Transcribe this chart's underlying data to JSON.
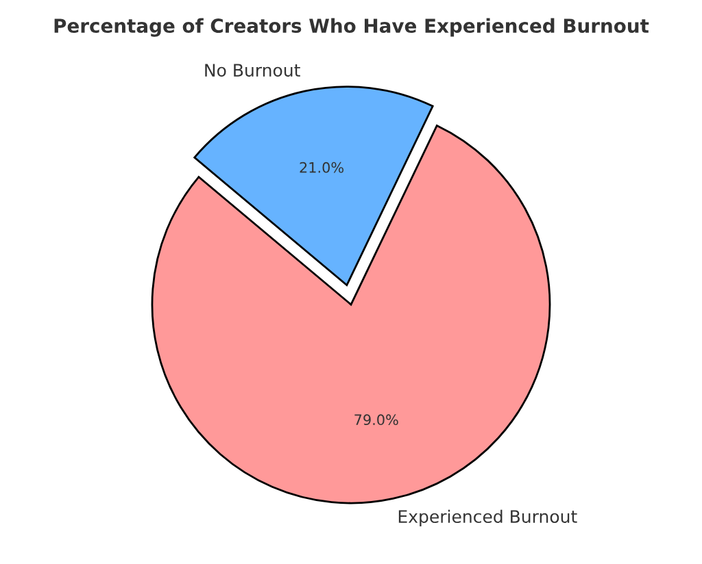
{
  "chart_data": {
    "type": "pie",
    "title": "Percentage of Creators Who Have Experienced Burnout",
    "categories": [
      "Experienced Burnout",
      "No Burnout"
    ],
    "values": [
      79,
      21
    ],
    "colors": [
      "#ff9999",
      "#66b3ff"
    ],
    "value_labels": [
      "79.0%",
      "21.0%"
    ],
    "legend": false
  }
}
